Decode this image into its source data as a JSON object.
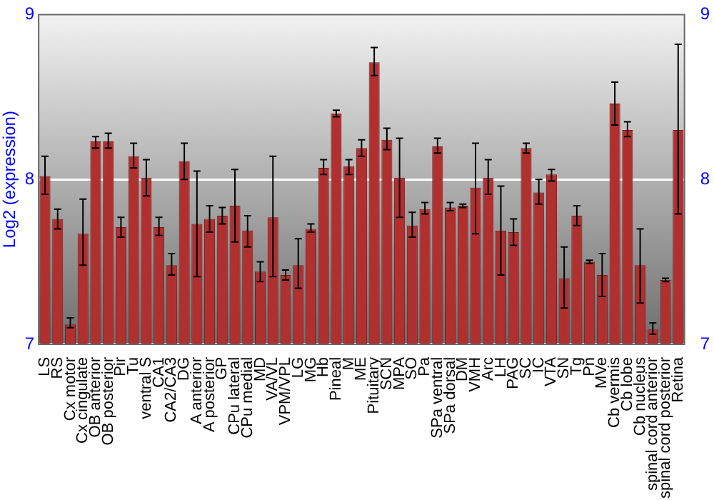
{
  "chart_data": {
    "type": "bar",
    "ylabel": "Log2 (expression)",
    "categories": [
      "LS",
      "RS",
      "Cx motor",
      "Cx cingulate",
      "OB anterior",
      "OB posterior",
      "Pir",
      "Tu",
      "ventral S",
      "CA1",
      "CA2/CA3",
      "DG",
      "A anterior",
      "A posterior",
      "GP",
      "CPu lateral",
      "CPu medial",
      "MD",
      "VA/VL",
      "VPM/VPL",
      "LG",
      "MG",
      "Hb",
      "Pineal",
      "M",
      "ME",
      "Pituitary",
      "SCN",
      "MPA",
      "SO",
      "Pa",
      "SPa ventral",
      "SPa dorsal",
      "DM",
      "VMH",
      "Arc",
      "LH",
      "PAG",
      "SC",
      "IC",
      "VTA",
      "SN",
      "Tg",
      "Pn",
      "MVe",
      "Cb vermis",
      "Cb lobe",
      "Cb nucleus",
      "spinal cord anterior",
      "spinal cord posterior",
      "Retina"
    ],
    "values": [
      8.02,
      7.76,
      7.12,
      7.67,
      8.23,
      8.23,
      7.71,
      8.14,
      8.01,
      7.71,
      7.48,
      8.11,
      7.73,
      7.76,
      7.78,
      7.84,
      7.69,
      7.44,
      7.77,
      7.42,
      7.48,
      7.7,
      8.07,
      8.4,
      8.08,
      8.19,
      8.71,
      8.24,
      8.01,
      7.72,
      7.82,
      8.2,
      7.83,
      7.84,
      7.95,
      8.01,
      7.69,
      7.68,
      8.19,
      7.92,
      8.03,
      7.4,
      7.78,
      7.5,
      7.42,
      8.46,
      8.3,
      7.48,
      7.09,
      7.39,
      8.3
    ],
    "errors": [
      [
        7.91,
        8.14
      ],
      [
        7.7,
        7.82
      ],
      [
        7.1,
        7.16
      ],
      [
        7.48,
        7.88
      ],
      [
        8.19,
        8.26
      ],
      [
        8.19,
        8.28
      ],
      [
        7.65,
        7.77
      ],
      [
        8.07,
        8.22
      ],
      [
        7.9,
        8.12
      ],
      [
        7.66,
        7.77
      ],
      [
        7.42,
        7.55
      ],
      [
        8.0,
        8.22
      ],
      [
        7.41,
        8.05
      ],
      [
        7.68,
        7.84
      ],
      [
        7.73,
        7.83
      ],
      [
        7.62,
        8.06
      ],
      [
        7.59,
        7.78
      ],
      [
        7.38,
        7.5
      ],
      [
        7.41,
        8.14
      ],
      [
        7.39,
        7.45
      ],
      [
        7.34,
        7.64
      ],
      [
        7.68,
        7.73
      ],
      [
        8.03,
        8.12
      ],
      [
        8.38,
        8.42
      ],
      [
        8.03,
        8.12
      ],
      [
        8.14,
        8.24
      ],
      [
        8.63,
        8.8
      ],
      [
        8.18,
        8.31
      ],
      [
        7.77,
        8.25
      ],
      [
        7.65,
        7.8
      ],
      [
        7.79,
        7.86
      ],
      [
        8.16,
        8.25
      ],
      [
        7.81,
        7.86
      ],
      [
        7.83,
        7.85
      ],
      [
        7.67,
        8.22
      ],
      [
        7.91,
        8.12
      ],
      [
        7.42,
        7.96
      ],
      [
        7.6,
        7.76
      ],
      [
        8.16,
        8.22
      ],
      [
        7.85,
        8.0
      ],
      [
        7.99,
        8.06
      ],
      [
        7.22,
        7.59
      ],
      [
        7.72,
        7.84
      ],
      [
        7.49,
        7.51
      ],
      [
        7.29,
        7.55
      ],
      [
        8.33,
        8.59
      ],
      [
        8.26,
        8.35
      ],
      [
        7.25,
        7.7
      ],
      [
        7.06,
        7.13
      ],
      [
        7.38,
        7.4
      ],
      [
        7.79,
        8.82
      ]
    ],
    "color": "#b03030",
    "ylim": [
      7,
      9
    ],
    "yticks": [
      7,
      8,
      9
    ],
    "y2lim": [
      7,
      9
    ],
    "y2ticks": [
      7,
      8,
      9
    ],
    "grid": "y",
    "legend": false
  }
}
